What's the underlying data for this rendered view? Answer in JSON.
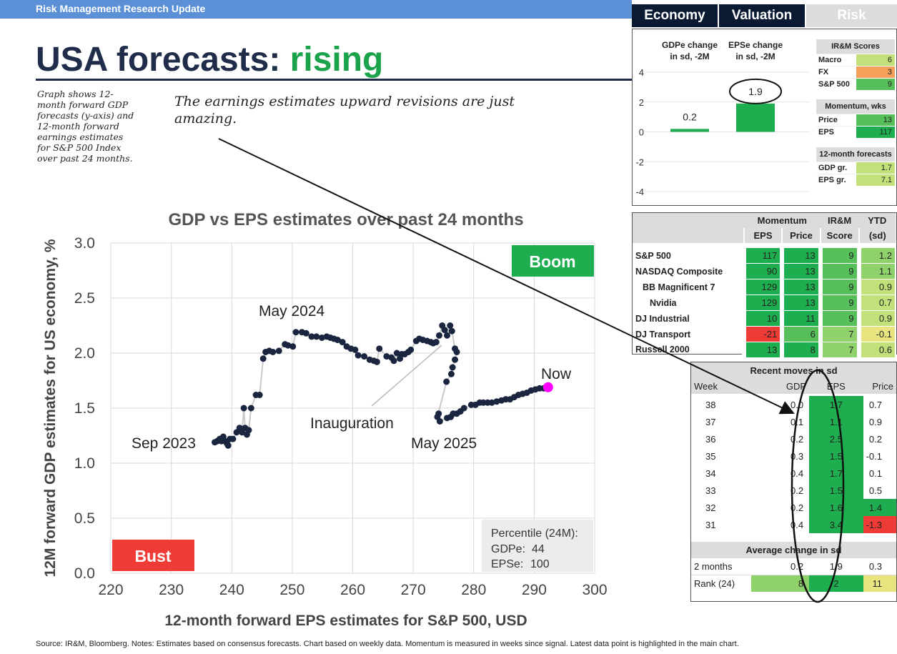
{
  "header": {
    "bar_title": "Risk Management Research Update",
    "title_main": "USA forecasts: ",
    "title_highlight": "rising",
    "side_note": "Graph shows 12-month forward GDP forecasts (y-axis) and 12-month forward earnings estimates for S&P 500 Index over past 24 months.",
    "callout": "The earnings estimates upward revisions are just amazing."
  },
  "tabs": [
    {
      "label": "Economy",
      "color": "#0b1a33"
    },
    {
      "label": "Valuation",
      "color": "#0b1a33"
    },
    {
      "label": "Risk",
      "color": "#dcdcdc"
    }
  ],
  "chart_data": [
    {
      "type": "scatter",
      "title": "GDP vs EPS estimates over past 24 months",
      "xlabel": "12-month forward EPS estimates for S&P 500, USD",
      "ylabel": "12M forward GDP estimates for US economy, %",
      "xlim": [
        220,
        300
      ],
      "ylim": [
        0,
        3
      ],
      "xticks": [
        "220",
        "230",
        "240",
        "250",
        "260",
        "270",
        "280",
        "290",
        "300"
      ],
      "yticks": [
        "0.0",
        "0.5",
        "1.0",
        "1.5",
        "2.0",
        "2.5",
        "3.0"
      ],
      "grid": true,
      "quadrant_labels": {
        "top_right": "Boom",
        "bottom_left": "Bust"
      },
      "quadrant_colors": {
        "boom": "#1fae4f",
        "bust": "#ef3b35"
      },
      "annotations": {
        "start": "Sep 2023",
        "peak": "May 2024",
        "inauguration": "Inauguration",
        "dip": "May 2025",
        "now": "Now"
      },
      "highlight_color": "#ff00ff",
      "percentile_box": {
        "title": "Percentile (24M):",
        "gdpe_label": "GDPe:",
        "gdpe_value": "44",
        "epse_label": "EPSe:",
        "epse_value": "100"
      },
      "points": [
        [
          237.2,
          1.19
        ],
        [
          237.6,
          1.2
        ],
        [
          238.0,
          1.22
        ],
        [
          238.3,
          1.2
        ],
        [
          238.6,
          1.24
        ],
        [
          238.9,
          1.2
        ],
        [
          239.2,
          1.18
        ],
        [
          239.4,
          1.16
        ],
        [
          239.7,
          1.22
        ],
        [
          240.2,
          1.22
        ],
        [
          240.8,
          1.28
        ],
        [
          241.3,
          1.32
        ],
        [
          241.7,
          1.28
        ],
        [
          242.0,
          1.5
        ],
        [
          242.2,
          1.32
        ],
        [
          242.5,
          1.26
        ],
        [
          242.8,
          1.3
        ],
        [
          243.2,
          1.5
        ],
        [
          244.0,
          1.62
        ],
        [
          244.6,
          1.62
        ],
        [
          245.2,
          1.95
        ],
        [
          245.6,
          2.01
        ],
        [
          246.2,
          2.02
        ],
        [
          246.8,
          2.01
        ],
        [
          247.8,
          2.02
        ],
        [
          248.8,
          2.08
        ],
        [
          249.3,
          2.07
        ],
        [
          250.1,
          2.06
        ],
        [
          250.6,
          2.19
        ],
        [
          251.6,
          2.19
        ],
        [
          252.3,
          2.18
        ],
        [
          253.2,
          2.15
        ],
        [
          254.0,
          2.15
        ],
        [
          254.9,
          2.14
        ],
        [
          255.7,
          2.15
        ],
        [
          256.3,
          2.14
        ],
        [
          256.9,
          2.13
        ],
        [
          257.5,
          2.12
        ],
        [
          258.3,
          2.1
        ],
        [
          259.0,
          2.06
        ],
        [
          259.7,
          2.04
        ],
        [
          260.4,
          2.03
        ],
        [
          260.9,
          1.98
        ],
        [
          261.9,
          1.97
        ],
        [
          262.8,
          1.94
        ],
        [
          263.5,
          1.93
        ],
        [
          264.0,
          1.92
        ],
        [
          264.4,
          2.04
        ],
        [
          265.6,
          1.97
        ],
        [
          266.4,
          1.96
        ],
        [
          266.8,
          1.93
        ],
        [
          267.3,
          2.0
        ],
        [
          267.8,
          1.95
        ],
        [
          268.1,
          1.99
        ],
        [
          268.6,
          1.99
        ],
        [
          269.2,
          2.01
        ],
        [
          269.6,
          2.03
        ],
        [
          270.5,
          2.11
        ],
        [
          271.0,
          2.13
        ],
        [
          271.6,
          2.12
        ],
        [
          272.3,
          2.11
        ],
        [
          272.9,
          2.1
        ],
        [
          273.3,
          2.09
        ],
        [
          273.8,
          2.1
        ],
        [
          274.3,
          2.16
        ],
        [
          274.8,
          2.25
        ],
        [
          275.2,
          2.21
        ],
        [
          275.6,
          2.16
        ],
        [
          276.1,
          2.25
        ],
        [
          276.4,
          2.2
        ],
        [
          276.9,
          2.04
        ],
        [
          277.2,
          2.01
        ],
        [
          276.9,
          1.94
        ],
        [
          276.5,
          1.87
        ],
        [
          276.3,
          1.81
        ],
        [
          275.5,
          1.74
        ],
        [
          274.0,
          1.42
        ],
        [
          274.2,
          1.45
        ],
        [
          274.4,
          1.38
        ],
        [
          275.6,
          1.41
        ],
        [
          276.2,
          1.42
        ],
        [
          276.6,
          1.45
        ],
        [
          277.2,
          1.45
        ],
        [
          277.8,
          1.47
        ],
        [
          278.4,
          1.5
        ],
        [
          279.6,
          1.53
        ],
        [
          280.3,
          1.53
        ],
        [
          281.0,
          1.55
        ],
        [
          281.6,
          1.55
        ],
        [
          282.3,
          1.55
        ],
        [
          283.0,
          1.55
        ],
        [
          283.8,
          1.56
        ],
        [
          284.6,
          1.57
        ],
        [
          285.3,
          1.58
        ],
        [
          286.0,
          1.58
        ],
        [
          286.7,
          1.6
        ],
        [
          287.4,
          1.62
        ],
        [
          288.1,
          1.63
        ],
        [
          288.8,
          1.64
        ],
        [
          289.5,
          1.66
        ],
        [
          290.2,
          1.67
        ],
        [
          290.9,
          1.68
        ],
        [
          291.6,
          1.68
        ],
        [
          292.3,
          1.69
        ]
      ]
    },
    {
      "type": "bar",
      "categories": [
        "GDPe change\nin sd, -2M",
        "EPSe change\nin sd, -2M"
      ],
      "values": [
        0.2,
        1.9
      ],
      "value_labels": [
        "0.2",
        "1.9"
      ],
      "ylim": [
        -4,
        4
      ],
      "yticks": [
        "4",
        "2",
        "0",
        "-2",
        "-4"
      ],
      "color": "#1fae4f"
    }
  ],
  "scores": {
    "sections": [
      {
        "title": "IR&M Scores",
        "rows": [
          {
            "label": "Macro",
            "value": "6",
            "cls": "g4"
          },
          {
            "label": "FX",
            "value": "3",
            "cls": "o1"
          },
          {
            "label": "S&P 500",
            "value": "9",
            "cls": "g2"
          }
        ]
      },
      {
        "title": "Momentum, wks",
        "rows": [
          {
            "label": "Price",
            "value": "13",
            "cls": "g2"
          },
          {
            "label": "EPS",
            "value": "117",
            "cls": "g1"
          }
        ]
      },
      {
        "title": "12-month forecasts",
        "rows": [
          {
            "label": "GDP gr.",
            "value": "1.7",
            "cls": "g4"
          },
          {
            "label": "EPS gr.",
            "value": "7.1",
            "cls": "g4"
          }
        ]
      }
    ]
  },
  "index_table": {
    "group_headers": [
      "Momentum",
      "IR&M",
      "YTD"
    ],
    "sub_headers": [
      "EPS",
      "Price",
      "Score",
      "(sd)"
    ],
    "rows": [
      {
        "name": "S&P 500",
        "indent": 0,
        "eps": "117",
        "price": "13",
        "score": "9",
        "ytd": "1.2",
        "c": [
          "g1",
          "g1",
          "g2",
          "g3"
        ]
      },
      {
        "name": "NASDAQ Composite",
        "indent": 0,
        "eps": "90",
        "price": "13",
        "score": "9",
        "ytd": "1.1",
        "c": [
          "g1",
          "g1",
          "g2",
          "g3"
        ]
      },
      {
        "name": "BB Magnificent 7",
        "indent": 1,
        "eps": "129",
        "price": "13",
        "score": "9",
        "ytd": "0.9",
        "c": [
          "g1",
          "g1",
          "g2",
          "g4"
        ]
      },
      {
        "name": "Nvidia",
        "indent": 2,
        "eps": "129",
        "price": "13",
        "score": "9",
        "ytd": "0.7",
        "c": [
          "g1",
          "g1",
          "g2",
          "g4"
        ]
      },
      {
        "name": "DJ Industrial",
        "indent": 0,
        "eps": "10",
        "price": "11",
        "score": "9",
        "ytd": "0.9",
        "c": [
          "g1",
          "g1",
          "g2",
          "g4"
        ]
      },
      {
        "name": "DJ Transport",
        "indent": 0,
        "eps": "-21",
        "price": "6",
        "score": "7",
        "ytd": "-0.1",
        "c": [
          "r1",
          "g2",
          "g3",
          "y1"
        ]
      },
      {
        "name": "Russell 2000",
        "indent": 0,
        "eps": "13",
        "price": "8",
        "score": "7",
        "ytd": "0.6",
        "c": [
          "g1",
          "g1",
          "g3",
          "g4"
        ]
      }
    ]
  },
  "recent_moves": {
    "title": "Recent moves in sd",
    "headers": [
      "Week",
      "GDP",
      "EPS",
      "Price"
    ],
    "rows": [
      {
        "week": "38",
        "gdp": "0.0",
        "eps": "1.7",
        "price": "0.7",
        "pc": ""
      },
      {
        "week": "37",
        "gdp": "0.1",
        "eps": "1.1",
        "price": "0.9",
        "pc": ""
      },
      {
        "week": "36",
        "gdp": "0.2",
        "eps": "2.5",
        "price": "0.2",
        "pc": ""
      },
      {
        "week": "35",
        "gdp": "0.3",
        "eps": "1.5",
        "price": "-0.1",
        "pc": ""
      },
      {
        "week": "34",
        "gdp": "0.4",
        "eps": "1.7",
        "price": "0.1",
        "pc": ""
      },
      {
        "week": "33",
        "gdp": "0.2",
        "eps": "1.5",
        "price": "0.5",
        "pc": ""
      },
      {
        "week": "32",
        "gdp": "0.2",
        "eps": "1.6",
        "price": "1.4",
        "pc": "g1"
      },
      {
        "week": "31",
        "gdp": "0.4",
        "eps": "3.4",
        "price": "-1.3",
        "pc": "r1"
      }
    ],
    "avg_title": "Average change in sd",
    "summary": [
      {
        "label": "2 months",
        "gdp": "0.2",
        "eps": "1.9",
        "price": "0.3",
        "c": [
          "",
          "",
          ""
        ]
      },
      {
        "label": "Rank (24)",
        "gdp": "8",
        "eps": "2",
        "price": "11",
        "c": [
          "g3",
          "g1",
          "y1"
        ]
      }
    ]
  },
  "footer": "Source: IR&M, Bloomberg. Notes: Estimates based on consensus forecasts. Chart based on weekly data. Momentum is measured in weeks since signal. Latest data point is highlighted in the main chart."
}
